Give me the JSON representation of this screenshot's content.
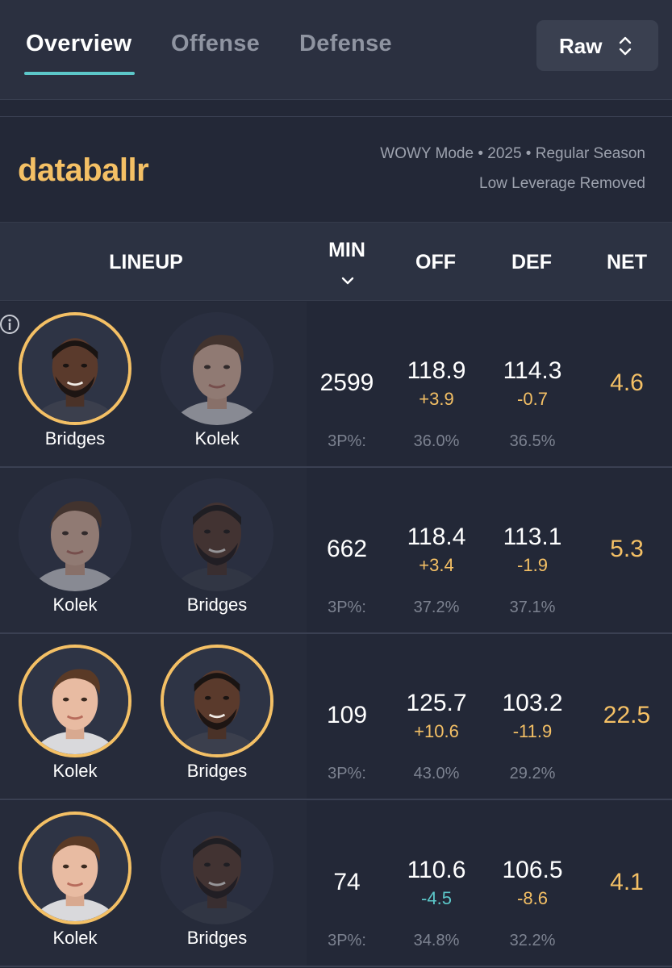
{
  "tabs": [
    {
      "label": "Overview",
      "active": true
    },
    {
      "label": "Offense",
      "active": false
    },
    {
      "label": "Defense",
      "active": false
    }
  ],
  "mode_select": {
    "value": "Raw"
  },
  "brand": {
    "logo_text": "databallr"
  },
  "meta": {
    "line1": "WOWY Mode • 2025 • Regular Season",
    "line2": "Low Leverage Removed"
  },
  "table": {
    "headers": {
      "lineup": "LINEUP",
      "min": "MIN",
      "off": "OFF",
      "def": "DEF",
      "net": "NET"
    },
    "sort_column": "MIN",
    "threept_label": "3P%:",
    "rows": [
      {
        "players": [
          {
            "name": "Bridges",
            "on_court": true
          },
          {
            "name": "Kolek",
            "on_court": false
          }
        ],
        "min": "2599",
        "off": "118.9",
        "off_delta": "+3.9",
        "def": "114.3",
        "def_delta": "-0.7",
        "net": "4.6",
        "off_3p": "36.0%",
        "def_3p": "36.5%"
      },
      {
        "players": [
          {
            "name": "Kolek",
            "on_court": false
          },
          {
            "name": "Bridges",
            "on_court": false
          }
        ],
        "min": "662",
        "off": "118.4",
        "off_delta": "+3.4",
        "def": "113.1",
        "def_delta": "-1.9",
        "net": "5.3",
        "off_3p": "37.2%",
        "def_3p": "37.1%"
      },
      {
        "players": [
          {
            "name": "Kolek",
            "on_court": true
          },
          {
            "name": "Bridges",
            "on_court": true
          }
        ],
        "min": "109",
        "off": "125.7",
        "off_delta": "+10.6",
        "def": "103.2",
        "def_delta": "-11.9",
        "net": "22.5",
        "off_3p": "43.0%",
        "def_3p": "29.2%"
      },
      {
        "players": [
          {
            "name": "Kolek",
            "on_court": true
          },
          {
            "name": "Bridges",
            "on_court": false
          }
        ],
        "min": "74",
        "off": "110.6",
        "off_delta": "-4.5",
        "def": "106.5",
        "def_delta": "-8.6",
        "net": "4.1",
        "off_3p": "34.8%",
        "def_3p": "32.2%"
      }
    ]
  },
  "colors": {
    "accent_gold": "#f4c065",
    "accent_teal": "#5cc7c9",
    "background": "#232837"
  },
  "icons": [
    "info-icon",
    "chevron-updown-icon",
    "sort-down-icon"
  ]
}
